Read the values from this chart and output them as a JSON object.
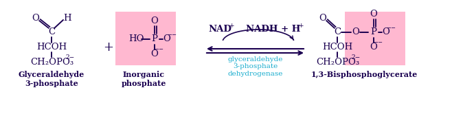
{
  "bg_color": "#ffffff",
  "pink_bg": "#ffb8d0",
  "dark_color": "#1a0050",
  "cyan_color": "#1aadce",
  "fig_width": 6.58,
  "fig_height": 1.95,
  "dpi": 100,
  "gap_label": "Glyceraldehyde\n3-phosphate",
  "pi_label": "Inorganic\nphosphate",
  "product_label": "1,3-Bisphosphoglycerate",
  "enzyme_label": "glyceraldehyde\n3-phosphate\ndehydrogenase",
  "nad_label": "NAD",
  "nad_sup": "+",
  "nadh_label": "NADH + H",
  "nadh_sup": "+"
}
